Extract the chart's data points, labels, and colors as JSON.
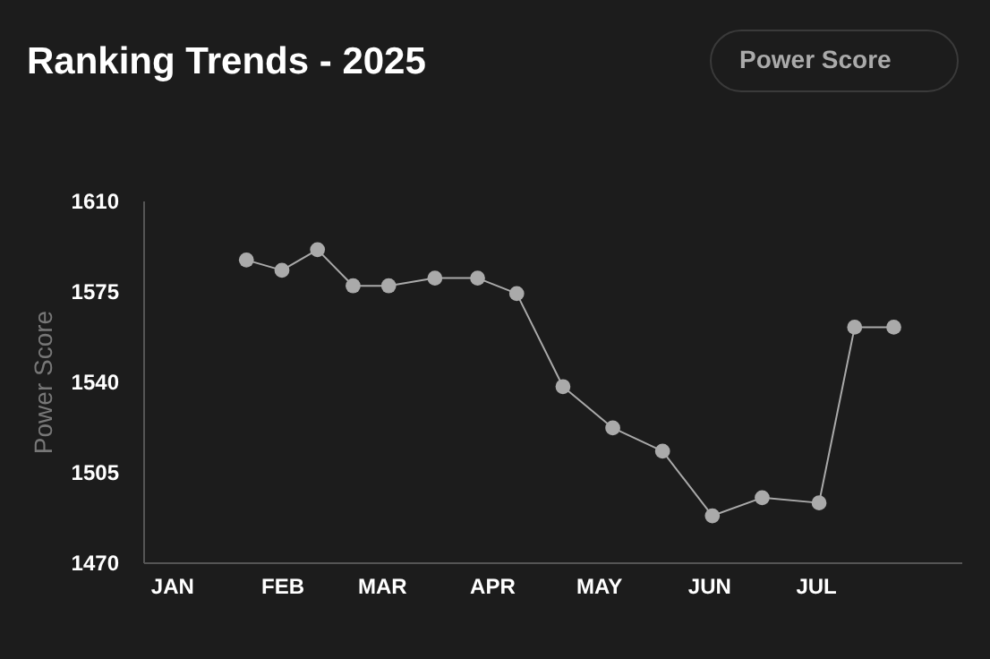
{
  "chart_data": {
    "type": "line",
    "title": "Ranking Trends - 2025",
    "ylabel": "Power Score",
    "annotations": [
      "Power Score"
    ],
    "x": [
      "2025-01-22",
      "2025-02-01",
      "2025-02-11",
      "2025-02-21",
      "2025-03-03",
      "2025-03-16",
      "2025-03-28",
      "2025-04-08",
      "2025-04-21",
      "2025-05-05",
      "2025-05-19",
      "2025-06-02",
      "2025-06-16",
      "2025-07-02",
      "2025-07-12",
      "2025-07-23"
    ],
    "series": [
      {
        "color": "#aaaaaa",
        "values": [
          1587,
          1583,
          1591,
          1577,
          1577,
          1580,
          1580,
          1574,
          1538,
          1522,
          1513,
          1488,
          1495,
          1493,
          1561,
          1561
        ]
      }
    ],
    "xlim": [
      "2024-12-24",
      "2025-08-11"
    ],
    "xticks": [
      {
        "value": "2025-01-01",
        "label": "JAN"
      },
      {
        "value": "2025-02-01",
        "label": "FEB"
      },
      {
        "value": "2025-03-01",
        "label": "MAR"
      },
      {
        "value": "2025-04-01",
        "label": "APR"
      },
      {
        "value": "2025-05-01",
        "label": "MAY"
      },
      {
        "value": "2025-06-01",
        "label": "JUN"
      },
      {
        "value": "2025-07-01",
        "label": "JUL"
      }
    ],
    "ylim": [
      1470,
      1610
    ],
    "yticks": [
      1470,
      1505,
      1540,
      1575,
      1610
    ],
    "grid": false,
    "marker": "circle",
    "line_style": "solid"
  }
}
